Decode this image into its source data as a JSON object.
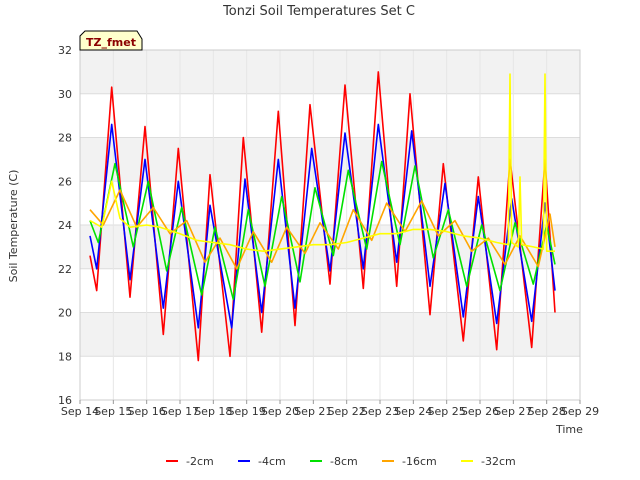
{
  "chart_data": {
    "type": "line",
    "title": "Tonzi Soil Temperatures Set C",
    "xlabel": "Time",
    "ylabel": "Soil Temperature (C)",
    "badge": "TZ_fmet",
    "ylim": [
      16,
      32
    ],
    "yticks": [
      16,
      18,
      20,
      22,
      24,
      26,
      28,
      30,
      32
    ],
    "xlim": [
      14,
      29
    ],
    "xticks": [
      {
        "v": 14,
        "label": "Sep 14"
      },
      {
        "v": 15,
        "label": "Sep 15"
      },
      {
        "v": 16,
        "label": "Sep 16"
      },
      {
        "v": 17,
        "label": "Sep 17"
      },
      {
        "v": 18,
        "label": "Sep 18"
      },
      {
        "v": 19,
        "label": "Sep 19"
      },
      {
        "v": 20,
        "label": "Sep 20"
      },
      {
        "v": 21,
        "label": "Sep 21"
      },
      {
        "v": 22,
        "label": "Sep 22"
      },
      {
        "v": 23,
        "label": "Sep 23"
      },
      {
        "v": 24,
        "label": "Sep 24"
      },
      {
        "v": 25,
        "label": "Sep 25"
      },
      {
        "v": 26,
        "label": "Sep 26"
      },
      {
        "v": 27,
        "label": "Sep 27"
      },
      {
        "v": 28,
        "label": "Sep 28"
      },
      {
        "v": 29,
        "label": "Sep 29"
      }
    ],
    "grid": true,
    "legend_position": "bottom",
    "series": [
      {
        "name": "-2cm",
        "color": "#ff0000",
        "points": [
          [
            14.3,
            22.6
          ],
          [
            14.5,
            21.0
          ],
          [
            14.95,
            30.3
          ],
          [
            15.5,
            20.7
          ],
          [
            15.95,
            28.5
          ],
          [
            16.5,
            19.0
          ],
          [
            16.95,
            27.5
          ],
          [
            17.55,
            17.8
          ],
          [
            17.9,
            26.3
          ],
          [
            18.5,
            18.0
          ],
          [
            18.9,
            28.0
          ],
          [
            19.45,
            19.1
          ],
          [
            19.95,
            29.2
          ],
          [
            20.45,
            19.4
          ],
          [
            20.9,
            29.5
          ],
          [
            21.5,
            21.3
          ],
          [
            21.95,
            30.4
          ],
          [
            22.5,
            21.1
          ],
          [
            22.95,
            31.0
          ],
          [
            23.5,
            21.2
          ],
          [
            23.9,
            30.0
          ],
          [
            24.5,
            19.9
          ],
          [
            24.9,
            26.8
          ],
          [
            25.5,
            18.7
          ],
          [
            25.95,
            26.2
          ],
          [
            26.5,
            18.3
          ],
          [
            26.9,
            27.0
          ],
          [
            27.55,
            18.4
          ],
          [
            27.95,
            27.0
          ],
          [
            28.25,
            20.0
          ]
        ]
      },
      {
        "name": "-4cm",
        "color": "#0000ff",
        "points": [
          [
            14.3,
            23.5
          ],
          [
            14.5,
            22.0
          ],
          [
            14.95,
            28.6
          ],
          [
            15.5,
            21.5
          ],
          [
            15.95,
            27.0
          ],
          [
            16.5,
            20.2
          ],
          [
            16.95,
            26.0
          ],
          [
            17.55,
            19.3
          ],
          [
            17.9,
            24.9
          ],
          [
            18.55,
            19.3
          ],
          [
            18.95,
            26.1
          ],
          [
            19.45,
            20.0
          ],
          [
            19.95,
            27.0
          ],
          [
            20.45,
            20.2
          ],
          [
            20.95,
            27.5
          ],
          [
            21.5,
            21.9
          ],
          [
            21.95,
            28.2
          ],
          [
            22.5,
            22.0
          ],
          [
            22.95,
            28.6
          ],
          [
            23.5,
            22.3
          ],
          [
            23.95,
            28.3
          ],
          [
            24.5,
            21.2
          ],
          [
            24.95,
            25.9
          ],
          [
            25.5,
            19.8
          ],
          [
            25.95,
            25.3
          ],
          [
            26.5,
            19.5
          ],
          [
            26.95,
            25.2
          ],
          [
            27.55,
            19.6
          ],
          [
            27.95,
            25.0
          ],
          [
            28.25,
            21.0
          ]
        ]
      },
      {
        "name": "-8cm",
        "color": "#00e000",
        "points": [
          [
            14.3,
            24.2
          ],
          [
            14.55,
            23.2
          ],
          [
            15.05,
            26.8
          ],
          [
            15.6,
            23.0
          ],
          [
            16.05,
            26.0
          ],
          [
            16.6,
            21.9
          ],
          [
            17.05,
            24.8
          ],
          [
            17.65,
            20.8
          ],
          [
            18.05,
            23.9
          ],
          [
            18.6,
            20.6
          ],
          [
            19.05,
            24.7
          ],
          [
            19.55,
            21.2
          ],
          [
            20.05,
            25.3
          ],
          [
            20.6,
            21.4
          ],
          [
            21.05,
            25.7
          ],
          [
            21.6,
            22.6
          ],
          [
            22.05,
            26.5
          ],
          [
            22.6,
            22.9
          ],
          [
            23.05,
            26.9
          ],
          [
            23.6,
            23.1
          ],
          [
            24.05,
            26.7
          ],
          [
            24.6,
            22.5
          ],
          [
            25.05,
            24.7
          ],
          [
            25.6,
            21.2
          ],
          [
            26.05,
            24.0
          ],
          [
            26.6,
            21.0
          ],
          [
            27.05,
            24.1
          ],
          [
            27.6,
            21.3
          ],
          [
            28.0,
            24.0
          ],
          [
            28.25,
            22.2
          ]
        ]
      },
      {
        "name": "-16cm",
        "color": "#ffa500",
        "points": [
          [
            14.3,
            24.7
          ],
          [
            14.7,
            24.0
          ],
          [
            15.2,
            25.6
          ],
          [
            15.7,
            23.9
          ],
          [
            16.2,
            24.8
          ],
          [
            16.7,
            23.6
          ],
          [
            17.2,
            24.2
          ],
          [
            17.75,
            22.3
          ],
          [
            18.2,
            23.4
          ],
          [
            18.7,
            22.0
          ],
          [
            19.2,
            23.7
          ],
          [
            19.75,
            22.3
          ],
          [
            20.2,
            23.9
          ],
          [
            20.75,
            22.7
          ],
          [
            21.2,
            24.1
          ],
          [
            21.75,
            22.9
          ],
          [
            22.2,
            24.7
          ],
          [
            22.75,
            23.3
          ],
          [
            23.2,
            25.0
          ],
          [
            23.75,
            23.7
          ],
          [
            24.25,
            25.1
          ],
          [
            24.75,
            23.5
          ],
          [
            25.25,
            24.2
          ],
          [
            25.75,
            22.8
          ],
          [
            26.25,
            23.4
          ],
          [
            26.75,
            22.2
          ],
          [
            27.2,
            23.5
          ],
          [
            27.75,
            22.1
          ],
          [
            28.1,
            24.5
          ],
          [
            28.25,
            23.0
          ]
        ]
      },
      {
        "name": "-32cm",
        "color": "#ffff00",
        "points": [
          [
            14.3,
            24.2
          ],
          [
            14.65,
            23.9
          ],
          [
            14.95,
            26.0
          ],
          [
            15.2,
            24.3
          ],
          [
            15.5,
            23.9
          ],
          [
            16.0,
            24.0
          ],
          [
            16.4,
            23.9
          ],
          [
            17.0,
            23.6
          ],
          [
            17.5,
            23.3
          ],
          [
            18.0,
            23.2
          ],
          [
            18.5,
            23.1
          ],
          [
            19.0,
            22.9
          ],
          [
            19.5,
            22.8
          ],
          [
            20.0,
            22.9
          ],
          [
            20.5,
            23.0
          ],
          [
            21.0,
            23.1
          ],
          [
            21.5,
            23.1
          ],
          [
            22.0,
            23.2
          ],
          [
            22.5,
            23.4
          ],
          [
            23.0,
            23.6
          ],
          [
            23.5,
            23.6
          ],
          [
            24.0,
            23.8
          ],
          [
            24.5,
            23.8
          ],
          [
            25.0,
            23.7
          ],
          [
            25.5,
            23.5
          ],
          [
            26.0,
            23.4
          ],
          [
            26.5,
            23.2
          ],
          [
            26.85,
            23.1
          ],
          [
            26.9,
            30.9
          ],
          [
            26.95,
            23.2
          ],
          [
            27.15,
            23.0
          ],
          [
            27.2,
            26.2
          ],
          [
            27.25,
            23.1
          ],
          [
            27.6,
            23.0
          ],
          [
            27.9,
            22.9
          ],
          [
            27.95,
            30.9
          ],
          [
            28.0,
            22.8
          ],
          [
            28.25,
            22.8
          ]
        ]
      }
    ]
  }
}
